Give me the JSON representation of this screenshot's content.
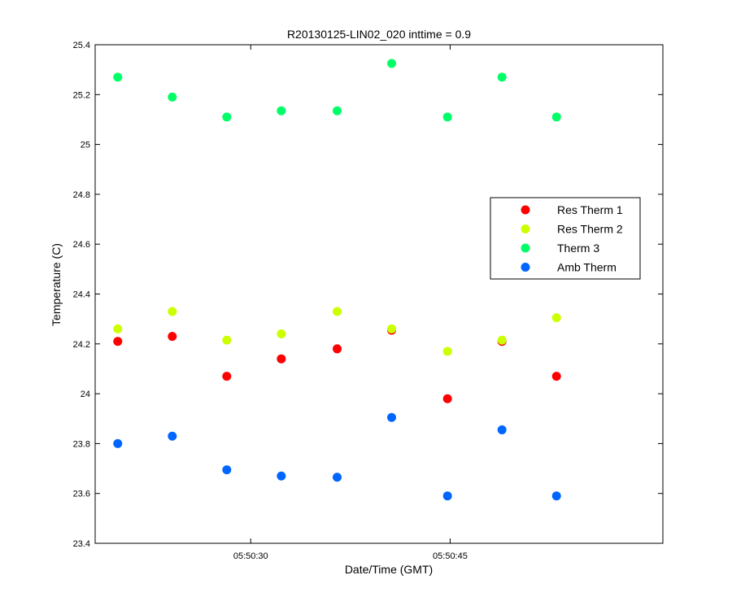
{
  "chart_data": {
    "type": "scatter",
    "title": "R20130125-LIN02_020 inttime = 0.9",
    "xlabel": "Date/Time (GMT)",
    "ylabel": "Temperature (C)",
    "xlim": [
      "05:50:18.3",
      "05:50:61.0"
    ],
    "ylim": [
      23.4,
      25.4
    ],
    "x_ticks": [
      "05:50:30",
      "05:50:45"
    ],
    "y_ticks": [
      "23.4",
      "23.6",
      "23.8",
      "24",
      "24.2",
      "24.4",
      "24.6",
      "24.8",
      "25",
      "25.2",
      "25.4"
    ],
    "legend_position": "right",
    "grid": false,
    "x": [
      "05:50:20.0",
      "05:50:24.1",
      "05:50:28.2",
      "05:50:32.3",
      "05:50:36.5",
      "05:50:40.6",
      "05:50:44.8",
      "05:50:48.9",
      "05:50:53.0"
    ],
    "series": [
      {
        "name": "Res Therm 1",
        "color": "#ff0000",
        "values": [
          24.21,
          24.23,
          24.07,
          24.14,
          24.18,
          24.255,
          23.98,
          24.21,
          24.07
        ]
      },
      {
        "name": "Res Therm 2",
        "color": "#ccff00",
        "values": [
          24.26,
          24.33,
          24.215,
          24.24,
          24.33,
          24.26,
          24.17,
          24.215,
          24.305
        ]
      },
      {
        "name": "Therm 3",
        "color": "#00ff66",
        "values": [
          25.27,
          25.19,
          25.11,
          25.135,
          25.135,
          25.325,
          25.11,
          25.27,
          25.11
        ]
      },
      {
        "name": "Amb Therm",
        "color": "#0066ff",
        "values": [
          23.8,
          23.83,
          23.695,
          23.67,
          23.665,
          23.905,
          23.59,
          23.855,
          23.59
        ]
      }
    ]
  }
}
